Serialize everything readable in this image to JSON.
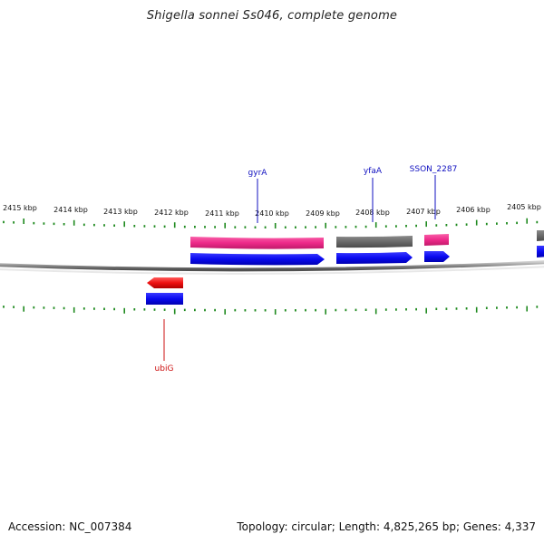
{
  "title": "Shigella sonnei Ss046, complete genome",
  "footer": {
    "accession": "Accession: NC_007384",
    "summary": "Topology: circular; Length: 4,825,265 bp; Genes: 4,337"
  },
  "scale_labels": [
    "2415 kbp",
    "2414 kbp",
    "2413 kbp",
    "2412 kbp",
    "2411 kbp",
    "2410 kbp",
    "2409 kbp",
    "2408 kbp",
    "2407 kbp",
    "2406 kbp",
    "2405 kbp"
  ],
  "genes_forward": [
    {
      "name": "gyrA",
      "color": "#1010d0"
    },
    {
      "name": "yfaA",
      "color": "#1010d0"
    },
    {
      "name": "SSON_2287",
      "color": "#1010d0"
    }
  ],
  "genes_reverse": [
    {
      "name": "ubiG",
      "color": "#cc1010"
    }
  ],
  "colors": {
    "tick": "#1f8a1f",
    "backbone": "#888888",
    "cds_blue": "#0a0af0",
    "feature_pink": "#ee2a8a",
    "feature_gray": "#6a6a6a",
    "reverse_red": "#ee1111",
    "label_blue": "#1010c0",
    "label_red": "#cc1010"
  }
}
